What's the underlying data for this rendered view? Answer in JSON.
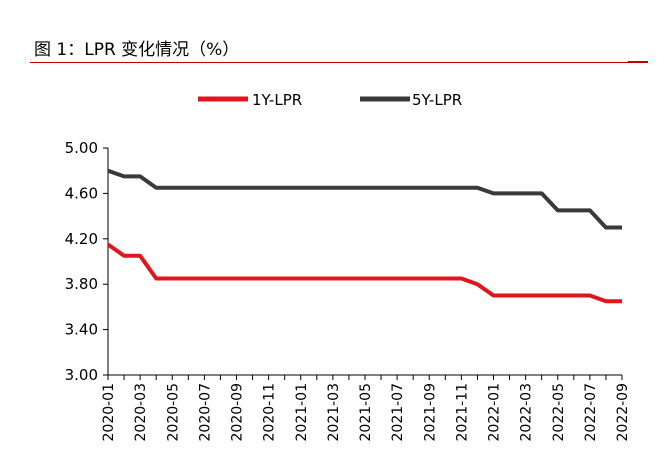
{
  "page": {
    "title": "图 1：LPR 变化情况（%）"
  },
  "chart_data": {
    "type": "line",
    "title": "图 1：LPR 变化情况（%）",
    "xlabel": "",
    "ylabel": "",
    "ylim": [
      3.0,
      5.0
    ],
    "yticks": [
      "5.00",
      "4.60",
      "4.20",
      "3.80",
      "3.40",
      "3.00"
    ],
    "x": [
      "2020-01",
      "2020-02",
      "2020-03",
      "2020-04",
      "2020-05",
      "2020-06",
      "2020-07",
      "2020-08",
      "2020-09",
      "2020-10",
      "2020-11",
      "2020-12",
      "2021-01",
      "2021-02",
      "2021-03",
      "2021-04",
      "2021-05",
      "2021-06",
      "2021-07",
      "2021-08",
      "2021-09",
      "2021-10",
      "2021-11",
      "2021-12",
      "2022-01",
      "2022-02",
      "2022-03",
      "2022-04",
      "2022-05",
      "2022-06",
      "2022-07",
      "2022-08",
      "2022-09"
    ],
    "xtick_labels": [
      "2020-01",
      "2020-03",
      "2020-05",
      "2020-07",
      "2020-09",
      "2020-11",
      "2021-01",
      "2021-03",
      "2021-05",
      "2021-07",
      "2021-09",
      "2021-11",
      "2022-01",
      "2022-03",
      "2022-05",
      "2022-07",
      "2022-09"
    ],
    "legend_position": "top",
    "grid": false,
    "series": [
      {
        "name": "1Y-LPR",
        "color": "#e0161e",
        "values": [
          4.15,
          4.05,
          4.05,
          3.85,
          3.85,
          3.85,
          3.85,
          3.85,
          3.85,
          3.85,
          3.85,
          3.85,
          3.85,
          3.85,
          3.85,
          3.85,
          3.85,
          3.85,
          3.85,
          3.85,
          3.85,
          3.85,
          3.85,
          3.8,
          3.7,
          3.7,
          3.7,
          3.7,
          3.7,
          3.7,
          3.7,
          3.65,
          3.65
        ]
      },
      {
        "name": "5Y-LPR",
        "color": "#3a3a3a",
        "values": [
          4.8,
          4.75,
          4.75,
          4.65,
          4.65,
          4.65,
          4.65,
          4.65,
          4.65,
          4.65,
          4.65,
          4.65,
          4.65,
          4.65,
          4.65,
          4.65,
          4.65,
          4.65,
          4.65,
          4.65,
          4.65,
          4.65,
          4.65,
          4.65,
          4.6,
          4.6,
          4.6,
          4.6,
          4.45,
          4.45,
          4.45,
          4.3,
          4.3
        ]
      }
    ]
  }
}
